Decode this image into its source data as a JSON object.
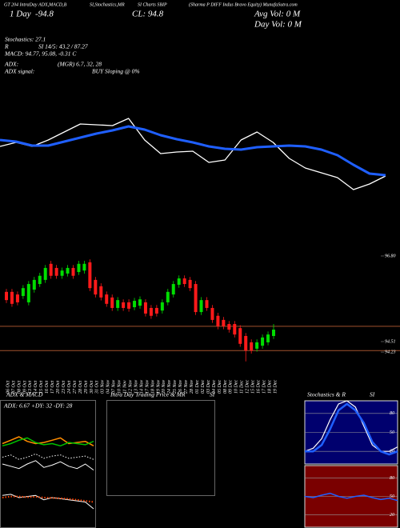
{
  "header": {
    "title_parts": [
      "GT 204 IntraDay ADX,MACD,B",
      "SI,Stochastics,MR",
      "SI Charts SBIP",
      "(Sharma P DIFF Indus Bravo Equity) MunafaSutra.com"
    ],
    "period": "1 Day",
    "change": "-94.8",
    "close": "CL: 94.8",
    "avg_vol": "Avg Vol: 0  M",
    "day_vol": "Day Vol: 0  M"
  },
  "stats": {
    "stochastics": "Stochastics: 27.1",
    "rsi_left": "R",
    "rsi": "SI 14/5: 43.2 / 87.27",
    "macd": "MACD: 94.77, 95.08, -0.31 C",
    "adx_left": "ADX:",
    "adx": "(MGR) 6.7, 32, 28",
    "signal_left": "ADX  signal:",
    "signal": "BUY Sloping @ 0%"
  },
  "chart_data": [
    {
      "type": "line",
      "ylim": [
        0,
        110
      ],
      "series": [
        {
          "color": "#ffffff",
          "width": 1.3,
          "values": [
            67,
            72,
            67,
            75,
            85,
            95,
            94,
            93,
            102,
            75,
            58,
            60,
            61,
            47,
            50,
            75,
            85,
            72,
            52,
            40,
            34,
            28,
            13,
            20,
            30
          ]
        },
        {
          "color": "#1f5fff",
          "width": 3,
          "values": [
            75,
            73,
            68,
            68,
            73,
            78,
            83,
            87,
            92,
            88,
            81,
            76,
            72,
            67,
            64,
            63,
            66,
            67,
            68,
            67,
            63,
            56,
            44,
            33,
            31
          ]
        }
      ]
    },
    {
      "type": "candlestick",
      "categories": [
        "06 Oct",
        "07 Oct",
        "08 Oct",
        "09 Oct",
        "13 Oct",
        "14 Oct",
        "15 Oct",
        "16 Oct",
        "17 Oct",
        "20 Oct",
        "23 Oct",
        "24 Oct",
        "27 Oct",
        "28 Oct",
        "29 Oct",
        "30 Oct",
        "31 Oct",
        "03 Nov",
        "04 Nov",
        "07 Nov",
        "10 Nov",
        "11 Nov",
        "12 Nov",
        "13 Nov",
        "14 Nov",
        "17 Nov",
        "18 Nov",
        "19 Nov",
        "20 Nov",
        "24 Nov",
        "25 Nov",
        "26 Nov",
        "27 Nov",
        "28 Nov",
        "01 Dec",
        "02 Dec",
        "03 Dec",
        "04 Dec",
        "05 Dec",
        "08 Dec",
        "09 Dec",
        "10 Dec",
        "11 Dec",
        "12 Dec",
        "15 Dec",
        "16 Dec",
        "17 Dec",
        "18 Dec",
        "19 Dec"
      ],
      "open": [
        95.84,
        95.84,
        95.77,
        95.73,
        95.56,
        95.9,
        96.05,
        96.16,
        96.59,
        96.48,
        96.27,
        96.33,
        96.48,
        96.37,
        96.41,
        96.63,
        96.16,
        95.99,
        95.77,
        95.69,
        95.41,
        95.56,
        95.56,
        95.43,
        95.47,
        95.56,
        95.41,
        95.41,
        95.34,
        95.56,
        95.77,
        96.03,
        96.2,
        96.16,
        96.05,
        95.3,
        95.62,
        95.41,
        95.2,
        95.09,
        94.98,
        94.98,
        94.87,
        94.66,
        94.49,
        94.32,
        94.4,
        94.49,
        94.66
      ],
      "high": [
        95.92,
        95.92,
        95.85,
        96.02,
        96.13,
        96.24,
        96.35,
        96.56,
        96.67,
        96.56,
        96.49,
        96.56,
        96.56,
        96.67,
        96.67,
        96.71,
        96.24,
        96.07,
        95.85,
        95.77,
        95.7,
        95.64,
        95.64,
        95.68,
        95.72,
        95.64,
        95.49,
        95.49,
        95.64,
        95.92,
        96.13,
        96.28,
        96.28,
        96.24,
        96.13,
        95.7,
        95.7,
        95.49,
        95.28,
        95.17,
        95.06,
        95.06,
        94.95,
        94.74,
        94.57,
        94.57,
        94.7,
        94.78,
        94.98
      ],
      "low": [
        95.54,
        95.44,
        95.48,
        95.65,
        95.48,
        95.82,
        95.97,
        96.08,
        96.19,
        96.19,
        96.19,
        96.25,
        96.19,
        96.29,
        96.33,
        95.86,
        95.69,
        95.61,
        95.44,
        95.33,
        95.33,
        95.33,
        95.31,
        95.35,
        95.39,
        95.18,
        95.12,
        95.18,
        95.26,
        95.48,
        95.69,
        95.95,
        95.97,
        95.86,
        95.22,
        95.22,
        95.33,
        95.01,
        94.84,
        94.84,
        94.75,
        94.62,
        94.37,
        93.98,
        94.19,
        94.24,
        94.32,
        94.41,
        94.58
      ],
      "close": [
        95.62,
        95.52,
        95.56,
        95.94,
        96.05,
        96.16,
        96.27,
        96.48,
        96.27,
        96.27,
        96.41,
        96.48,
        96.27,
        96.59,
        96.59,
        95.94,
        95.77,
        95.69,
        95.52,
        95.41,
        95.62,
        95.41,
        95.39,
        95.6,
        95.64,
        95.26,
        95.2,
        95.26,
        95.56,
        95.84,
        96.05,
        96.2,
        96.05,
        95.94,
        95.3,
        95.62,
        95.41,
        95.09,
        94.92,
        94.92,
        94.83,
        94.7,
        94.45,
        94.27,
        94.27,
        94.49,
        94.62,
        94.7,
        94.83
      ],
      "up_color": "#00dd00",
      "down_color": "#ff1a1a",
      "ylim": [
        93.9,
        96.9
      ],
      "yticks": [
        {
          "value": 96.8,
          "label": "96.80"
        },
        {
          "value": 94.51,
          "label": "94.51"
        },
        {
          "value": 94.23,
          "label": "94.23"
        }
      ],
      "levels": [
        94.92,
        94.27
      ],
      "level_color": "#a0522d"
    },
    {
      "type": "line",
      "title": "ADX & MACD",
      "subtitle": "ADX: 6.67  +DY: 32  -DY: 28",
      "ylim": [
        0,
        60
      ],
      "series": [
        {
          "color": "#ff8c00",
          "width": 1.5,
          "values": [
            30,
            33,
            36,
            32,
            30,
            31,
            33,
            35,
            30,
            31,
            32,
            28
          ]
        },
        {
          "color": "#00c000",
          "width": 1.5,
          "values": [
            28,
            30,
            33,
            35,
            31,
            29,
            30,
            28,
            31,
            30,
            29,
            32
          ]
        },
        {
          "color": "#ffffff",
          "width": 1,
          "values": [
            12,
            10,
            8,
            12,
            15,
            9,
            11,
            14,
            10,
            8,
            12,
            6.67
          ]
        },
        {
          "color": "#ffffff",
          "width": 1,
          "style": "dotted",
          "values": [
            18,
            20,
            16,
            18,
            21,
            17,
            19,
            20,
            17,
            18,
            19,
            16
          ]
        }
      ]
    },
    {
      "type": "line",
      "ylim": [
        -1,
        1
      ],
      "series": [
        {
          "color": "#ffffff",
          "width": 1,
          "values": [
            0.3,
            0.35,
            0.2,
            0.25,
            0.3,
            0.1,
            0.2,
            0.15,
            0.1,
            0.05,
            0,
            -0.31
          ]
        },
        {
          "color": "#ff4500",
          "width": 2,
          "style": "dotted",
          "values": [
            0.2,
            0.25,
            0.25,
            0.22,
            0.24,
            0.2,
            0.18,
            0.17,
            0.14,
            0.1,
            0.05,
            0
          ]
        }
      ]
    },
    {
      "type": "line",
      "title": "Intra  Day Trading Price  & MR",
      "title2": "SI",
      "series": []
    },
    {
      "type": "line",
      "title": "Stochastics & R",
      "title2": "SI",
      "ylim": [
        0,
        100
      ],
      "yticks": [
        80,
        50,
        20
      ],
      "background": "#00006e",
      "series": [
        {
          "color": "#ffffff",
          "width": 1.2,
          "values": [
            20,
            25,
            40,
            70,
            95,
            100,
            90,
            60,
            30,
            20,
            20,
            27.1
          ]
        },
        {
          "color": "#1f5fff",
          "width": 2.5,
          "values": [
            20,
            20,
            30,
            55,
            85,
            95,
            85,
            65,
            35,
            20,
            15,
            20
          ]
        }
      ]
    },
    {
      "type": "line",
      "ylim": [
        0,
        100
      ],
      "yticks": [
        80,
        50,
        20
      ],
      "background": "#7a0000",
      "series": [
        {
          "color": "#1f5fff",
          "width": 1.5,
          "values": [
            50,
            48,
            52,
            55,
            50,
            47,
            50,
            52,
            48,
            45,
            47,
            43.2
          ]
        }
      ]
    }
  ]
}
